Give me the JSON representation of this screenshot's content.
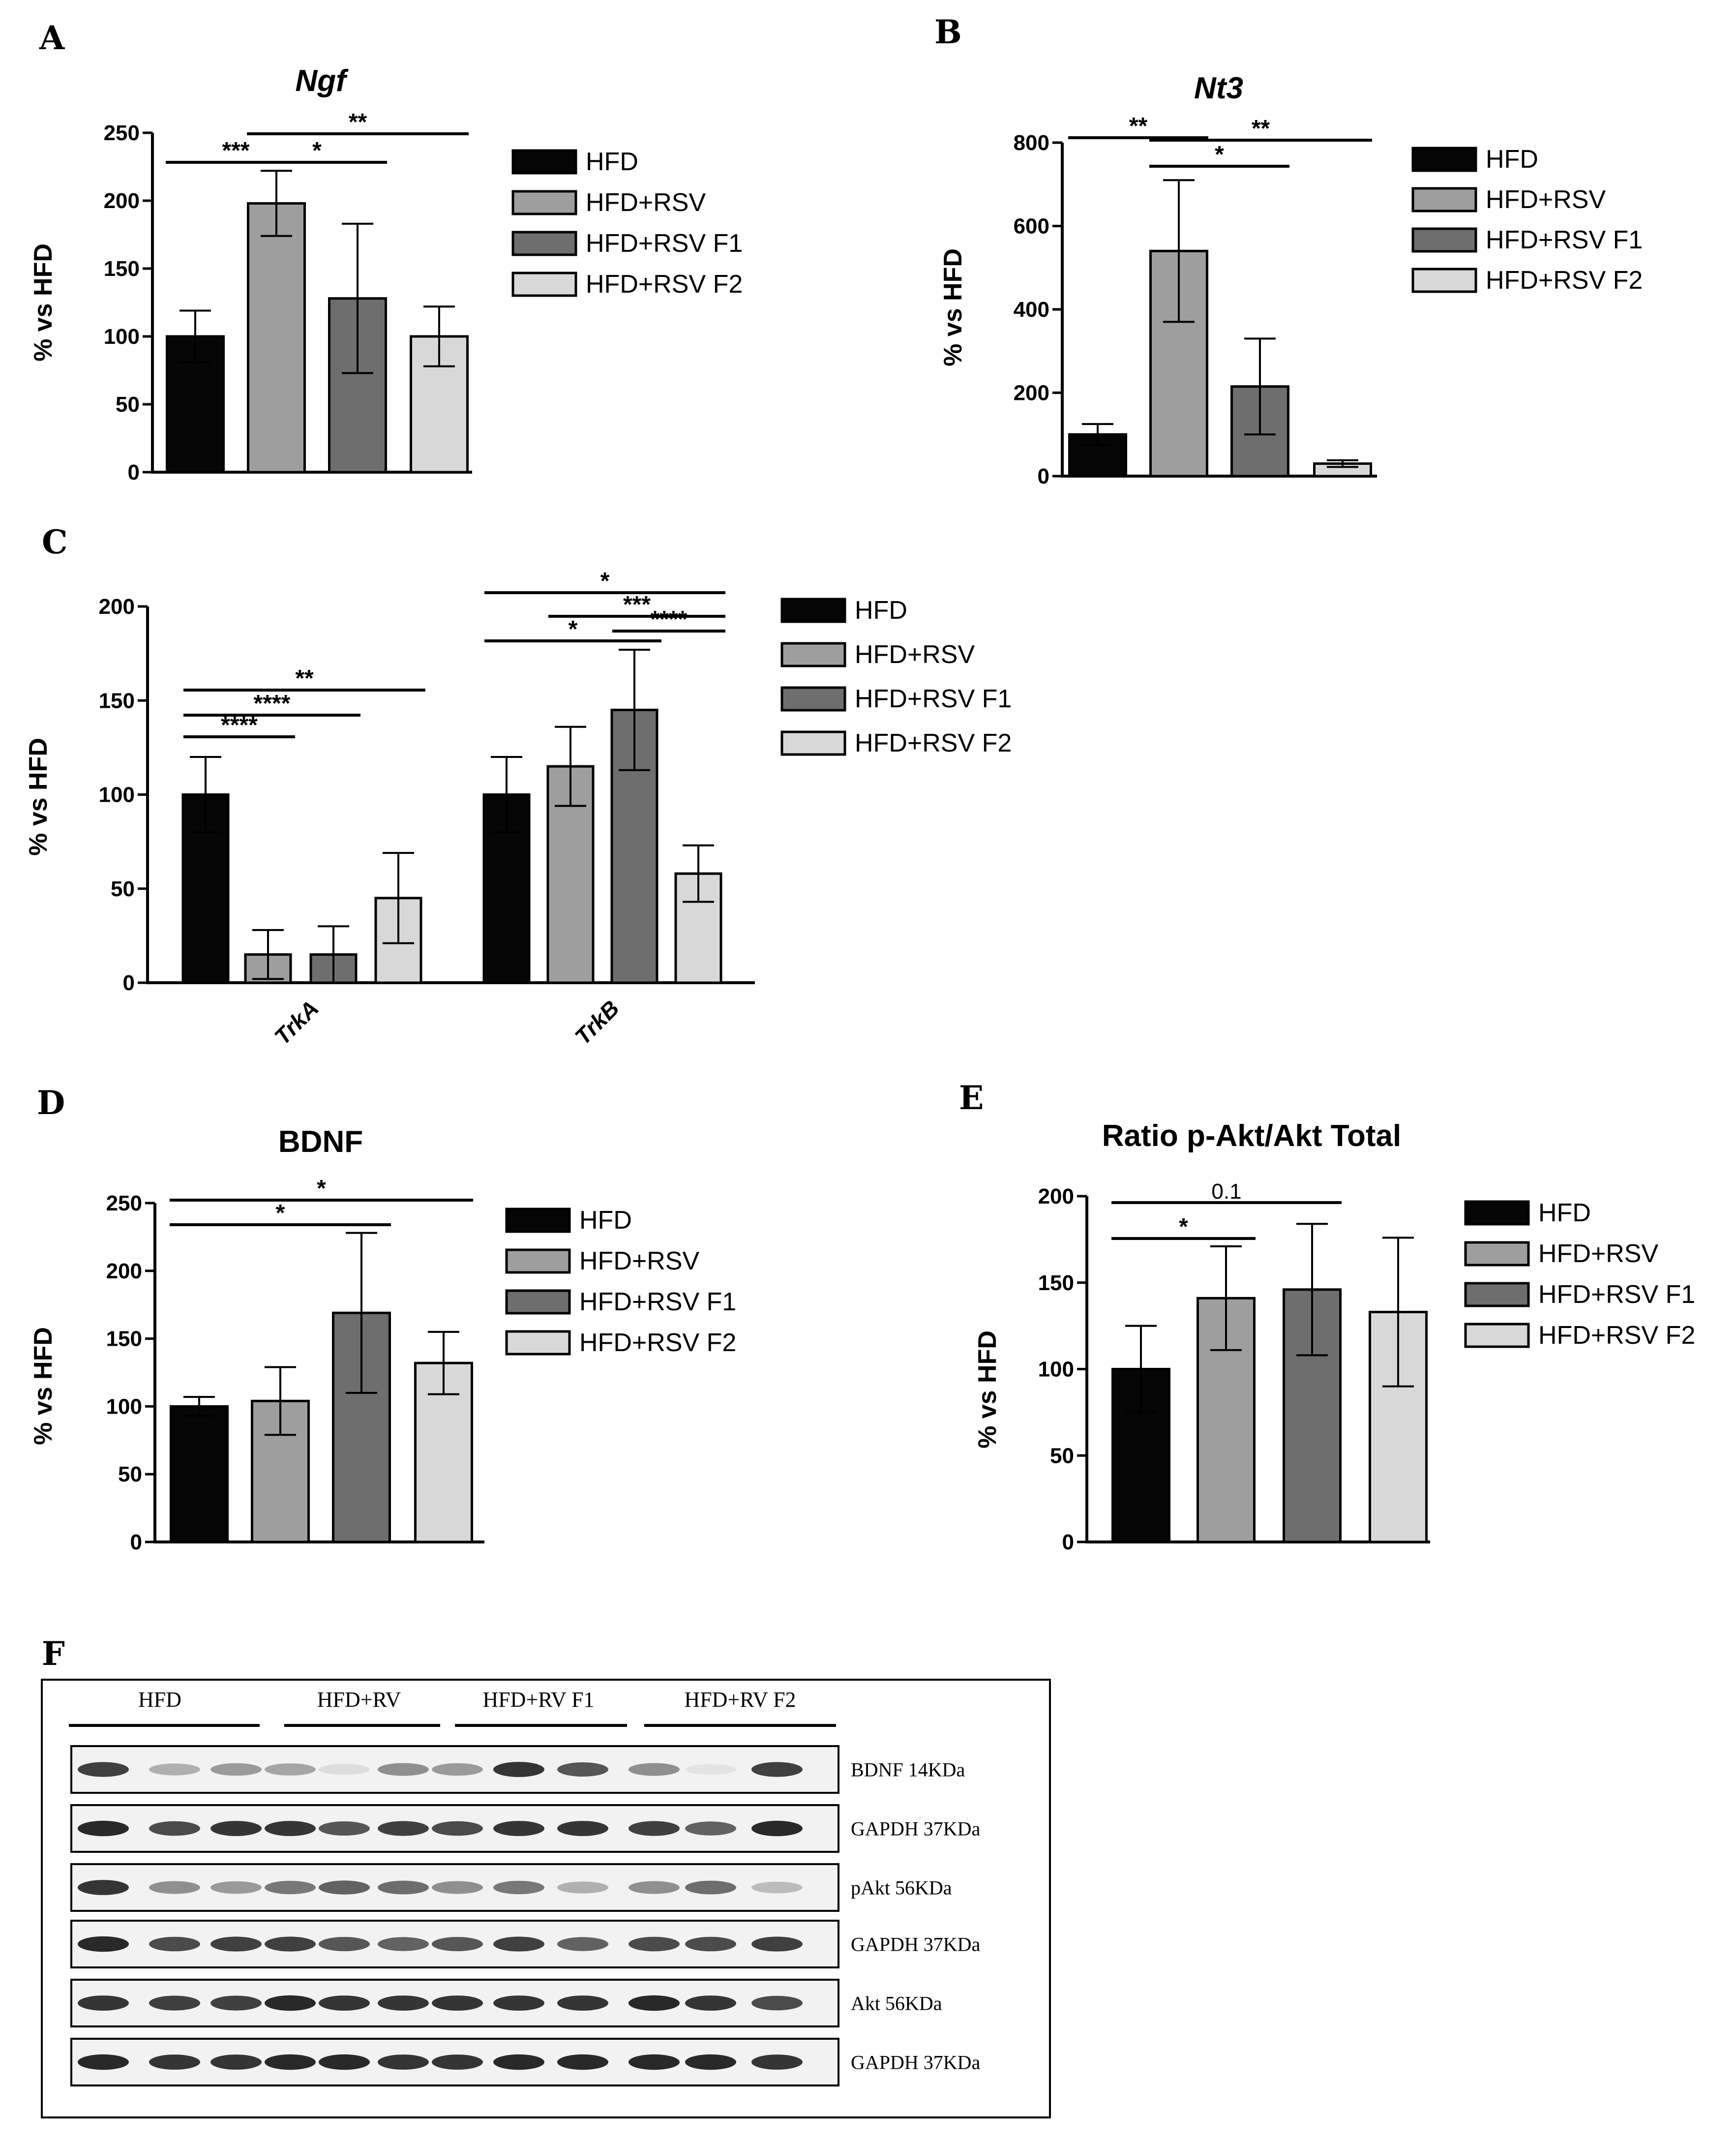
{
  "colors": {
    "HFD": "#050505",
    "HFD+RSV": "#9e9e9e",
    "HFD+RSV F1": "#6e6e6e",
    "HFD+RSV F2": "#d8d8d8"
  },
  "chart_data": [
    {
      "panel": "A",
      "type": "bar",
      "title": "Ngf",
      "title_italic": true,
      "ylabel": "% vs HFD",
      "ylim": [
        0,
        250
      ],
      "yticks": [
        0,
        50,
        100,
        150,
        200,
        250
      ],
      "categories": [
        "HFD",
        "HFD+RSV",
        "HFD+RSV F1",
        "HFD+RSV F2"
      ],
      "values": [
        100,
        198,
        128,
        100
      ],
      "errors": [
        19,
        24,
        55,
        22
      ],
      "legend": [
        "HFD",
        "HFD+RSV",
        "HFD+RSV F1",
        "HFD+RSV F2"
      ],
      "significance": [
        {
          "from": 0,
          "to": 1,
          "label": "***"
        },
        {
          "from": 1,
          "to": 2,
          "label": "*"
        },
        {
          "from": 1,
          "to": 3,
          "label": "**"
        }
      ]
    },
    {
      "panel": "B",
      "type": "bar",
      "title": "Nt3",
      "title_italic": true,
      "ylabel": "% vs HFD",
      "ylim": [
        0,
        800
      ],
      "yticks": [
        0,
        200,
        400,
        600,
        800
      ],
      "categories": [
        "HFD",
        "HFD+RSV",
        "HFD+RSV F1",
        "HFD+RSV F2"
      ],
      "values": [
        100,
        540,
        215,
        30
      ],
      "errors": [
        25,
        170,
        115,
        8
      ],
      "legend": [
        "HFD",
        "HFD+RSV",
        "HFD+RSV F1",
        "HFD+RSV F2"
      ],
      "significance": [
        {
          "from": 0,
          "to": 1,
          "label": "**"
        },
        {
          "from": 1,
          "to": 2,
          "label": "*"
        },
        {
          "from": 1,
          "to": 3,
          "label": "**"
        }
      ]
    },
    {
      "panel": "C",
      "type": "grouped_bar",
      "title": "",
      "ylabel": "% vs HFD",
      "ylim": [
        0,
        200
      ],
      "yticks": [
        0,
        50,
        100,
        150,
        200
      ],
      "groups": [
        "TrkA",
        "TrkB"
      ],
      "series": [
        {
          "name": "HFD",
          "values": [
            100,
            100
          ],
          "errors": [
            20,
            20
          ]
        },
        {
          "name": "HFD+RSV",
          "values": [
            15,
            115
          ],
          "errors": [
            13,
            21
          ]
        },
        {
          "name": "HFD+RSV F1",
          "values": [
            15,
            145
          ],
          "errors": [
            15,
            32
          ]
        },
        {
          "name": "HFD+RSV F2",
          "values": [
            45,
            58
          ],
          "errors": [
            24,
            15
          ]
        }
      ],
      "legend": [
        "HFD",
        "HFD+RSV",
        "HFD+RSV F1",
        "HFD+RSV F2"
      ],
      "significance": [
        {
          "group": 0,
          "from": 0,
          "to": 1,
          "label": "****"
        },
        {
          "group": 0,
          "from": 0,
          "to": 2,
          "label": "****"
        },
        {
          "group": 0,
          "from": 0,
          "to": 3,
          "label": "**"
        },
        {
          "group": 1,
          "from": 0,
          "to": 2,
          "label": "*"
        },
        {
          "group": 1,
          "from": 2,
          "to": 3,
          "label": "****"
        },
        {
          "group": 1,
          "from": 1,
          "to": 3,
          "label": "***"
        },
        {
          "group": 1,
          "from": 0,
          "to": 3,
          "label": "*"
        }
      ]
    },
    {
      "panel": "D",
      "type": "bar",
      "title": "BDNF",
      "title_italic": false,
      "ylabel": "% vs HFD",
      "ylim": [
        0,
        250
      ],
      "yticks": [
        0,
        50,
        100,
        150,
        200,
        250
      ],
      "categories": [
        "HFD",
        "HFD+RSV",
        "HFD+RSV F1",
        "HFD+RSV F2"
      ],
      "values": [
        100,
        104,
        169,
        132
      ],
      "errors": [
        7,
        25,
        59,
        23
      ],
      "legend": [
        "HFD",
        "HFD+RSV",
        "HFD+RSV F1",
        "HFD+RSV F2"
      ],
      "significance": [
        {
          "from": 0,
          "to": 2,
          "label": "*"
        },
        {
          "from": 0,
          "to": 3,
          "label": "*"
        }
      ]
    },
    {
      "panel": "E",
      "type": "bar",
      "title": "Ratio p-Akt/Akt Total",
      "title_italic": false,
      "ylabel": "% vs HFD",
      "ylim": [
        0,
        200
      ],
      "yticks": [
        0,
        50,
        100,
        150,
        200
      ],
      "categories": [
        "HFD",
        "HFD+RSV",
        "HFD+RSV F1",
        "HFD+RSV F2"
      ],
      "values": [
        100,
        141,
        146,
        133
      ],
      "errors": [
        25,
        30,
        38,
        43
      ],
      "legend": [
        "HFD",
        "HFD+RSV",
        "HFD+RSV F1",
        "HFD+RSV F2"
      ],
      "significance": [
        {
          "from": 0,
          "to": 1,
          "label": "*"
        },
        {
          "from": 0,
          "to": 2,
          "label": "0.1"
        }
      ]
    }
  ],
  "blot": {
    "panel": "F",
    "groups": [
      "HFD",
      "HFD+RV",
      "HFD+RV F1",
      "HFD+RV F2"
    ],
    "rows": [
      {
        "label": "BDNF 14KDa",
        "intensity": [
          0.85,
          0.35,
          0.45,
          0.4,
          0.15,
          0.5,
          0.45,
          0.9,
          0.75,
          0.5,
          0.12,
          0.85
        ]
      },
      {
        "label": "GAPDH 37KDa",
        "intensity": [
          0.95,
          0.8,
          0.9,
          0.9,
          0.75,
          0.85,
          0.8,
          0.9,
          0.9,
          0.85,
          0.7,
          0.95
        ]
      },
      {
        "label": "pAkt 56KDa",
        "intensity": [
          0.9,
          0.5,
          0.45,
          0.6,
          0.7,
          0.65,
          0.5,
          0.6,
          0.35,
          0.5,
          0.65,
          0.3
        ]
      },
      {
        "label": "GAPDH 37KDa",
        "intensity": [
          0.95,
          0.8,
          0.85,
          0.85,
          0.75,
          0.7,
          0.75,
          0.85,
          0.7,
          0.8,
          0.8,
          0.85
        ]
      },
      {
        "label": "Akt 56KDa",
        "intensity": [
          0.9,
          0.85,
          0.85,
          0.95,
          0.9,
          0.9,
          0.9,
          0.9,
          0.9,
          0.95,
          0.9,
          0.8
        ]
      },
      {
        "label": "GAPDH 37KDa",
        "intensity": [
          0.95,
          0.9,
          0.9,
          0.95,
          0.95,
          0.9,
          0.9,
          0.95,
          0.95,
          0.95,
          0.95,
          0.9
        ]
      }
    ]
  }
}
